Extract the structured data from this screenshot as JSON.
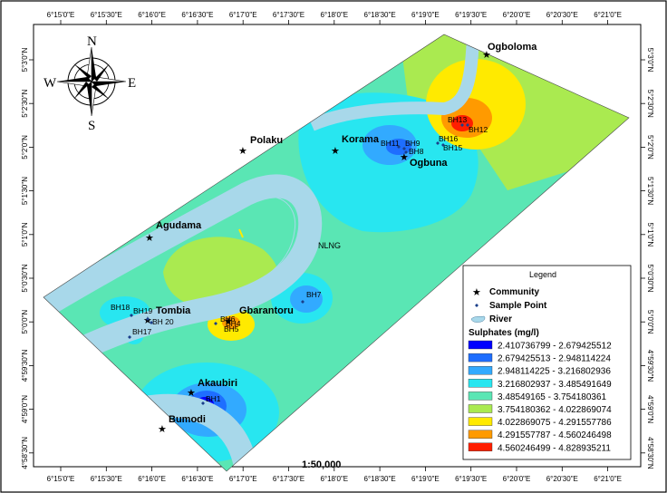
{
  "map": {
    "top_ticks": [
      "6°15'0\"E",
      "6°15'30\"E",
      "6°16'0\"E",
      "6°16'30\"E",
      "6°17'0\"E",
      "6°17'30\"E",
      "6°18'0\"E",
      "6°18'30\"E",
      "6°19'0\"E",
      "6°19'30\"E",
      "6°20'0\"E",
      "6°20'30\"E",
      "6°21'0\"E"
    ],
    "bottom_ticks": [
      "6°15'0\"E",
      "6°15'30\"E",
      "6°16'0\"E",
      "6°16'30\"E",
      "6°17'0\"E",
      "6°17'30\"E",
      "6°18'0\"E",
      "6°18'30\"E",
      "6°19'0\"E",
      "6°19'30\"E",
      "6°20'0\"E",
      "6°20'30\"E",
      "6°21'0\"E"
    ],
    "left_ticks": [
      "5°3'0\"N",
      "5°2'30\"N",
      "5°2'0\"N",
      "5°1'30\"N",
      "5°1'0\"N",
      "5°0'30\"N",
      "5°0'0\"N",
      "4°59'30\"N",
      "4°59'0\"N",
      "4°58'30\"N"
    ],
    "right_ticks": [
      "5°3'0\"N",
      "5°2'30\"N",
      "5°2'0\"N",
      "5°1'30\"N",
      "5°1'0\"N",
      "5°0'30\"N",
      "5°0'0\"N",
      "4°59'30\"N",
      "4°59'0\"N",
      "4°58'30\"N"
    ],
    "compass": {
      "n": "N",
      "s": "S",
      "e": "E",
      "w": "W"
    },
    "communities": [
      "Ogboloma",
      "Polaku",
      "Korama",
      "Ogbuna",
      "Agudama",
      "Tombia",
      "Gbarantoru",
      "Akaubiri",
      "Bumodi"
    ],
    "boreholes": [
      "BH13",
      "BH12",
      "BH16",
      "BH15",
      "BH11",
      "BH9",
      "BH8",
      "BH7",
      "BH18",
      "BH19",
      "BH 20",
      "BH17",
      "BH6",
      "BH4",
      "BH5",
      "BH1"
    ],
    "nlng": "NLNG",
    "scale": "1:50,000",
    "legend": {
      "title": "Legend",
      "community": "Community",
      "sample_point": "Sample Point",
      "river": "River",
      "sulphates_title": "Sulphates (mg/l)",
      "classes": [
        {
          "label": "2.410736799 - 2.679425512",
          "color": "#0000ff"
        },
        {
          "label": "2.679425513 - 2.948114224",
          "color": "#1e6eff"
        },
        {
          "label": "2.948114225 - 3.216802936",
          "color": "#32aaff"
        },
        {
          "label": "3.216802937 - 3.485491649",
          "color": "#28e6f0"
        },
        {
          "label": "3.48549165 - 3.754180361",
          "color": "#5ae6b4"
        },
        {
          "label": "3.754180362 - 4.022869074",
          "color": "#aaea50"
        },
        {
          "label": "4.022869075 - 4.291557786",
          "color": "#ffea00"
        },
        {
          "label": "4.291557787 - 4.560246498",
          "color": "#ff9a00"
        },
        {
          "label": "4.560246499 - 4.828935211",
          "color": "#ff1e00"
        }
      ]
    },
    "colors": {
      "river": "#a8d8ea",
      "community_star": "#000000",
      "sample_point": "#1a3f8a"
    }
  }
}
